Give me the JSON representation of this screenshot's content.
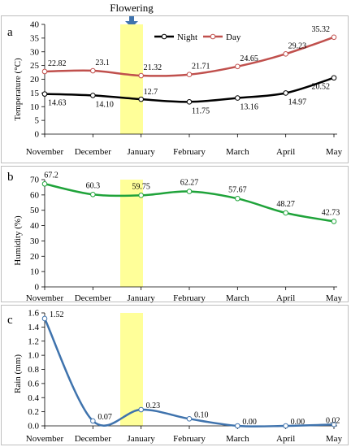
{
  "figure": {
    "annotation": "Flowering",
    "months": [
      "November",
      "December",
      "January",
      "February",
      "March",
      "April",
      "May"
    ]
  },
  "chart_data": [
    {
      "panel": "a",
      "type": "line",
      "xlabel": "",
      "ylabel": "Temperature (°C)",
      "ylim": [
        0,
        40
      ],
      "yticks": [
        0,
        5,
        10,
        15,
        20,
        25,
        30,
        35,
        40
      ],
      "categories": [
        "November",
        "December",
        "January",
        "February",
        "March",
        "April",
        "May"
      ],
      "legend": "top-center",
      "series": [
        {
          "name": "Night",
          "color": "#000000",
          "values": [
            14.63,
            14.1,
            12.7,
            11.75,
            13.16,
            14.97,
            20.52
          ],
          "labels": [
            "14.63",
            "14.10",
            "12.7",
            "11.75",
            "13.16",
            "14.97",
            "20.52"
          ]
        },
        {
          "name": "Day",
          "color": "#c0504d",
          "values": [
            22.82,
            23.1,
            21.32,
            21.71,
            24.65,
            29.23,
            35.32
          ],
          "labels": [
            "22.82",
            "23.1",
            "21.32",
            "21.71",
            "24.65",
            "29.23",
            "35.32"
          ]
        }
      ]
    },
    {
      "panel": "b",
      "type": "line",
      "xlabel": "",
      "ylabel": "Humidity (%)",
      "ylim": [
        0,
        70
      ],
      "yticks": [
        0,
        10,
        20,
        30,
        40,
        50,
        60,
        70
      ],
      "categories": [
        "November",
        "December",
        "January",
        "February",
        "March",
        "April",
        "May"
      ],
      "series": [
        {
          "color": "#1fa33a",
          "values": [
            67.2,
            60.3,
            59.75,
            62.27,
            57.67,
            48.27,
            42.73
          ],
          "labels": [
            "67.2",
            "60.3",
            "59.75",
            "62.27",
            "57.67",
            "48.27",
            "42.73"
          ]
        }
      ]
    },
    {
      "panel": "c",
      "type": "line",
      "xlabel": "",
      "ylabel": "Rain (mm)",
      "ylim": [
        0,
        1.6
      ],
      "yticks": [
        0.0,
        0.2,
        0.4,
        0.6,
        0.8,
        1.0,
        1.2,
        1.4,
        1.6
      ],
      "yticklabels": [
        "0.0",
        "0.2",
        "0.4",
        "0.6",
        "0.8",
        "1.0",
        "1.2",
        "1.4",
        "1.6"
      ],
      "categories": [
        "November",
        "December",
        "January",
        "February",
        "March",
        "April",
        "May"
      ],
      "series": [
        {
          "color": "#3f73ad",
          "values": [
            1.52,
            0.07,
            0.23,
            0.1,
            0.0,
            0.0,
            0.02
          ],
          "labels": [
            "1.52",
            "0.07",
            "0.23",
            "0.10",
            "0.00",
            "0.00",
            "0.02"
          ]
        }
      ]
    }
  ]
}
